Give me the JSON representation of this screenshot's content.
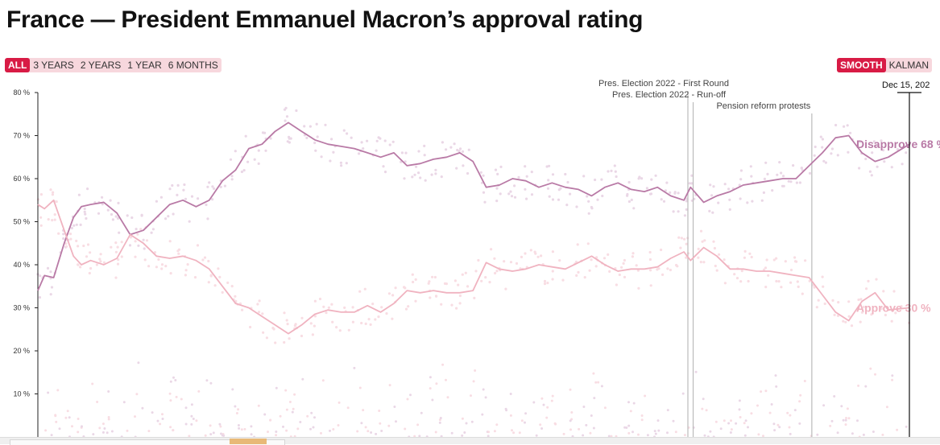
{
  "page": {
    "title": "France — President Emmanuel Macron’s approval rating"
  },
  "range_buttons": [
    {
      "label": "ALL",
      "active": true
    },
    {
      "label": "3 YEARS",
      "active": false
    },
    {
      "label": "2 YEARS",
      "active": false
    },
    {
      "label": "1 YEAR",
      "active": false
    },
    {
      "label": "6 MONTHS",
      "active": false
    }
  ],
  "model_buttons": [
    {
      "label": "SMOOTH",
      "active": true
    },
    {
      "label": "KALMAN",
      "active": false
    }
  ],
  "chart_data": {
    "type": "line",
    "x_start": "2017-05",
    "x_end": "2023-12-15",
    "ylim": [
      0,
      80
    ],
    "yticks": [
      "10 %",
      "20 %",
      "30 %",
      "40 %",
      "50 %",
      "60 %",
      "70 %",
      "80 %"
    ],
    "yticks_values": [
      10,
      20,
      30,
      40,
      50,
      60,
      70,
      80
    ],
    "cursor_label": "Dec 15, 202",
    "grid": false,
    "colors": {
      "disapprove": "#b97aa6",
      "approve": "#f0b3c0",
      "dots_disapprove": "#ead7e6",
      "dots_approve": "#f8dde3"
    },
    "x": [
      2017.35,
      2017.4,
      2017.47,
      2017.55,
      2017.62,
      2017.68,
      2017.75,
      2017.85,
      2017.95,
      2018.05,
      2018.15,
      2018.25,
      2018.35,
      2018.45,
      2018.55,
      2018.65,
      2018.75,
      2018.85,
      2018.95,
      2019.05,
      2019.15,
      2019.25,
      2019.35,
      2019.45,
      2019.55,
      2019.65,
      2019.75,
      2019.85,
      2019.95,
      2020.05,
      2020.15,
      2020.25,
      2020.35,
      2020.45,
      2020.55,
      2020.65,
      2020.75,
      2020.85,
      2020.95,
      2021.05,
      2021.15,
      2021.25,
      2021.35,
      2021.45,
      2021.55,
      2021.65,
      2021.75,
      2021.85,
      2021.95,
      2022.05,
      2022.15,
      2022.25,
      2022.3,
      2022.4,
      2022.5,
      2022.6,
      2022.7,
      2022.8,
      2022.9,
      2023.0,
      2023.1,
      2023.2,
      2023.3,
      2023.4,
      2023.5,
      2023.6,
      2023.7,
      2023.8,
      2023.96
    ],
    "series": [
      {
        "name": "Disapprove",
        "end_label": "Disapprove  68 %",
        "values": [
          34,
          37.5,
          37,
          45,
          51,
          53.5,
          54,
          54.5,
          52,
          47,
          48,
          51,
          54,
          55,
          53.5,
          55,
          59.5,
          62,
          67,
          68,
          71,
          73,
          71,
          69,
          68,
          67.5,
          67,
          66,
          65,
          66,
          63,
          63.5,
          64.5,
          65,
          66,
          64,
          58,
          58.5,
          60,
          59.5,
          58,
          59,
          58,
          57.5,
          56,
          58,
          59,
          57.5,
          57,
          58,
          56,
          55,
          58,
          54.5,
          56,
          57,
          58.5,
          59,
          59.5,
          60,
          60,
          63,
          66,
          69.5,
          70,
          66,
          64,
          65,
          68
        ]
      },
      {
        "name": "Approve",
        "end_label": "Approve  30 %",
        "values": [
          54,
          53,
          55,
          48,
          42,
          40,
          41,
          40,
          41.5,
          47,
          45,
          42,
          41.5,
          42,
          41,
          39,
          35,
          31,
          30,
          28,
          26,
          24,
          26,
          28.5,
          29.5,
          29,
          29,
          30.5,
          29,
          31,
          34,
          33.5,
          34,
          33.5,
          33.5,
          34,
          40.5,
          39,
          38.5,
          39,
          40,
          39.5,
          39,
          40.5,
          42,
          40,
          38.5,
          39,
          39,
          39.5,
          41.5,
          43,
          41,
          44,
          42,
          39,
          39,
          38.5,
          38.5,
          38,
          37.5,
          37,
          33,
          29,
          27,
          31.5,
          33.5,
          29.5,
          30
        ]
      }
    ],
    "events": [
      {
        "label": "Pres. Election 2022 - First Round",
        "x": 2022.28
      },
      {
        "label": "Pres. Election 2022 - Run-off",
        "x": 2022.32
      },
      {
        "label": "Pension reform protests",
        "x": 2023.22
      }
    ]
  }
}
